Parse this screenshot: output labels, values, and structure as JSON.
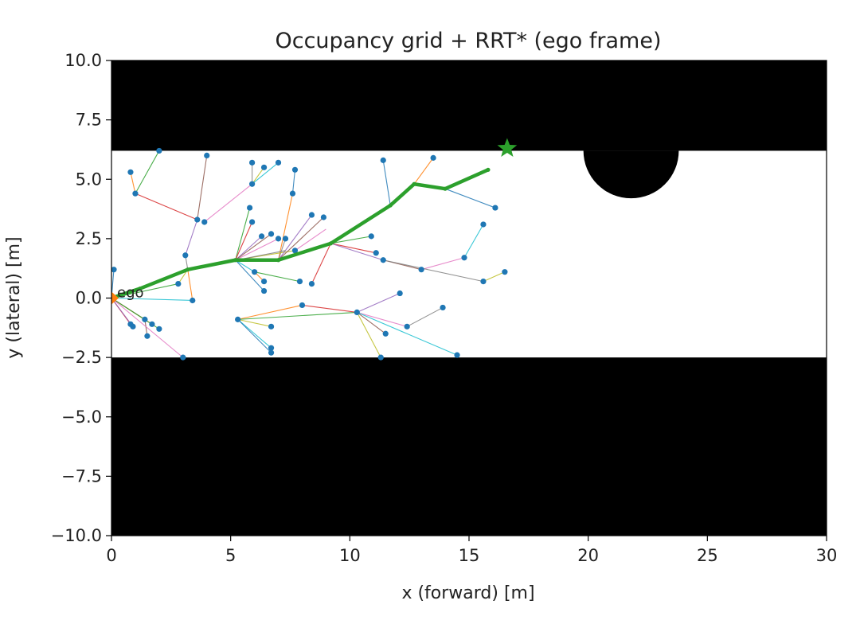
{
  "chart_data": {
    "type": "scatter",
    "title": "Occupancy grid + RRT* (ego frame)",
    "xlabel": "x (forward) [m]",
    "ylabel": "y (lateral) [m]",
    "xlim": [
      0,
      30
    ],
    "ylim": [
      -10,
      10
    ],
    "x_ticks": [
      "0",
      "5",
      "10",
      "15",
      "20",
      "25",
      "30"
    ],
    "y_ticks": [
      "10.0",
      "7.5",
      "5.0",
      "2.5",
      "0.0",
      "−2.5",
      "−5.0",
      "−7.5",
      "−10.0"
    ],
    "grid": false,
    "occupancy": {
      "free_corridor_y": [
        -2.5,
        6.2
      ],
      "obstacle_semicircle": {
        "center": [
          21.8,
          6.2
        ],
        "radius": 2.0
      },
      "occupied_color": "#000000",
      "free_color": "#ffffff"
    },
    "ego": {
      "label": "ego",
      "x": 0,
      "y": 0,
      "color": "#ff7f0e"
    },
    "goal": {
      "x": 16.6,
      "y": 6.3,
      "marker": "star",
      "color": "#2ca02c"
    },
    "node_color": "#1f77b4",
    "path_color": "#2ca02c",
    "edge_colors": [
      "#1f77b4",
      "#ff7f0e",
      "#2ca02c",
      "#d62728",
      "#9467bd",
      "#8c564b",
      "#e377c2",
      "#7f7f7f",
      "#bcbd22",
      "#17becf"
    ],
    "path": [
      [
        0,
        0
      ],
      [
        1.2,
        0.4
      ],
      [
        3.2,
        1.2
      ],
      [
        5.2,
        1.6
      ],
      [
        7.0,
        1.6
      ],
      [
        9.2,
        2.3
      ],
      [
        11.7,
        3.9
      ],
      [
        12.7,
        4.8
      ],
      [
        14.0,
        4.6
      ],
      [
        15.8,
        5.4
      ]
    ],
    "nodes": [
      [
        0.1,
        1.2
      ],
      [
        0.8,
        5.3
      ],
      [
        1.0,
        4.4
      ],
      [
        2.0,
        6.2
      ],
      [
        3.6,
        3.3
      ],
      [
        4.0,
        6.0
      ],
      [
        3.9,
        3.2
      ],
      [
        3.1,
        1.8
      ],
      [
        2.8,
        0.6
      ],
      [
        3.4,
        -0.1
      ],
      [
        1.4,
        -0.9
      ],
      [
        1.7,
        -1.1
      ],
      [
        2.0,
        -1.3
      ],
      [
        0.8,
        -1.1
      ],
      [
        0.9,
        -1.2
      ],
      [
        1.5,
        -1.6
      ],
      [
        3.0,
        -2.5
      ],
      [
        5.9,
        5.7
      ],
      [
        6.4,
        5.5
      ],
      [
        5.9,
        4.8
      ],
      [
        7.0,
        5.7
      ],
      [
        7.7,
        5.4
      ],
      [
        7.6,
        4.4
      ],
      [
        5.8,
        3.8
      ],
      [
        5.9,
        3.2
      ],
      [
        6.3,
        2.6
      ],
      [
        6.7,
        2.7
      ],
      [
        7.0,
        2.5
      ],
      [
        7.3,
        2.5
      ],
      [
        7.7,
        2.0
      ],
      [
        6.0,
        1.1
      ],
      [
        6.4,
        0.7
      ],
      [
        6.4,
        0.3
      ],
      [
        7.9,
        0.7
      ],
      [
        8.4,
        0.6
      ],
      [
        8.4,
        3.5
      ],
      [
        8.9,
        3.4
      ],
      [
        5.3,
        -0.9
      ],
      [
        6.7,
        -1.2
      ],
      [
        6.7,
        -2.1
      ],
      [
        6.7,
        -2.3
      ],
      [
        8.0,
        -0.3
      ],
      [
        10.3,
        -0.6
      ],
      [
        12.1,
        0.2
      ],
      [
        11.5,
        -1.5
      ],
      [
        12.4,
        -1.2
      ],
      [
        13.9,
        -0.4
      ],
      [
        11.3,
        -2.5
      ],
      [
        14.5,
        -2.4
      ],
      [
        11.4,
        5.8
      ],
      [
        13.5,
        5.9
      ],
      [
        10.9,
        2.6
      ],
      [
        11.1,
        1.9
      ],
      [
        11.4,
        1.6
      ],
      [
        13.0,
        1.2
      ],
      [
        14.8,
        1.7
      ],
      [
        15.6,
        0.7
      ],
      [
        16.5,
        1.1
      ],
      [
        15.6,
        3.1
      ],
      [
        16.1,
        3.8
      ]
    ],
    "edges": [
      [
        [
          0,
          0
        ],
        [
          0.1,
          1.2
        ]
      ],
      [
        [
          1.0,
          4.4
        ],
        [
          0.8,
          5.3
        ]
      ],
      [
        [
          1.0,
          4.4
        ],
        [
          2.0,
          6.2
        ]
      ],
      [
        [
          1.0,
          4.4
        ],
        [
          3.6,
          3.3
        ]
      ],
      [
        [
          3.1,
          1.8
        ],
        [
          3.6,
          3.3
        ]
      ],
      [
        [
          3.6,
          3.3
        ],
        [
          4.0,
          6.0
        ]
      ],
      [
        [
          3.9,
          3.2
        ],
        [
          5.9,
          4.8
        ]
      ],
      [
        [
          3.1,
          1.8
        ],
        [
          3.2,
          1.2
        ]
      ],
      [
        [
          2.8,
          0.6
        ],
        [
          3.2,
          1.2
        ]
      ],
      [
        [
          0,
          0
        ],
        [
          3.4,
          -0.1
        ]
      ],
      [
        [
          0,
          0
        ],
        [
          1.4,
          -0.9
        ]
      ],
      [
        [
          0,
          0
        ],
        [
          1.7,
          -1.1
        ]
      ],
      [
        [
          0,
          0
        ],
        [
          2.0,
          -1.3
        ]
      ],
      [
        [
          0,
          0
        ],
        [
          0.8,
          -1.1
        ]
      ],
      [
        [
          0,
          0
        ],
        [
          0.9,
          -1.2
        ]
      ],
      [
        [
          1.4,
          -0.9
        ],
        [
          1.5,
          -1.6
        ]
      ],
      [
        [
          0,
          0
        ],
        [
          3.0,
          -2.5
        ]
      ],
      [
        [
          5.9,
          4.8
        ],
        [
          5.9,
          5.7
        ]
      ],
      [
        [
          5.9,
          4.8
        ],
        [
          6.4,
          5.5
        ]
      ],
      [
        [
          5.9,
          4.8
        ],
        [
          7.0,
          5.7
        ]
      ],
      [
        [
          7.6,
          4.4
        ],
        [
          7.7,
          5.4
        ]
      ],
      [
        [
          7.0,
          1.6
        ],
        [
          7.6,
          4.4
        ]
      ],
      [
        [
          5.2,
          1.6
        ],
        [
          5.8,
          3.8
        ]
      ],
      [
        [
          5.2,
          1.6
        ],
        [
          5.9,
          3.2
        ]
      ],
      [
        [
          5.2,
          1.6
        ],
        [
          6.3,
          2.6
        ]
      ],
      [
        [
          5.2,
          1.6
        ],
        [
          6.7,
          2.7
        ]
      ],
      [
        [
          5.2,
          1.6
        ],
        [
          7.0,
          2.5
        ]
      ],
      [
        [
          7.0,
          1.6
        ],
        [
          7.3,
          2.5
        ]
      ],
      [
        [
          5.2,
          1.6
        ],
        [
          7.7,
          2.0
        ]
      ],
      [
        [
          5.2,
          1.6
        ],
        [
          6.0,
          1.1
        ]
      ],
      [
        [
          5.2,
          1.6
        ],
        [
          6.4,
          0.3
        ]
      ],
      [
        [
          6.0,
          1.1
        ],
        [
          6.4,
          0.7
        ]
      ],
      [
        [
          6.0,
          1.1
        ],
        [
          7.9,
          0.7
        ]
      ],
      [
        [
          9.2,
          2.3
        ],
        [
          8.4,
          0.6
        ]
      ],
      [
        [
          7.0,
          1.6
        ],
        [
          8.4,
          3.5
        ]
      ],
      [
        [
          7.0,
          1.6
        ],
        [
          8.9,
          3.4
        ]
      ],
      [
        [
          7.7,
          2.0
        ],
        [
          9.0,
          2.9
        ]
      ],
      [
        [
          3.2,
          1.2
        ],
        [
          7.3,
          2.0
        ]
      ],
      [
        [
          5.3,
          -0.9
        ],
        [
          6.7,
          -1.2
        ]
      ],
      [
        [
          5.3,
          -0.9
        ],
        [
          6.7,
          -2.1
        ]
      ],
      [
        [
          5.3,
          -0.9
        ],
        [
          6.7,
          -2.3
        ]
      ],
      [
        [
          5.3,
          -0.9
        ],
        [
          8.0,
          -0.3
        ]
      ],
      [
        [
          5.3,
          -0.9
        ],
        [
          10.3,
          -0.6
        ]
      ],
      [
        [
          8.0,
          -0.3
        ],
        [
          10.3,
          -0.6
        ]
      ],
      [
        [
          10.3,
          -0.6
        ],
        [
          12.1,
          0.2
        ]
      ],
      [
        [
          10.3,
          -0.6
        ],
        [
          11.5,
          -1.5
        ]
      ],
      [
        [
          10.3,
          -0.6
        ],
        [
          12.4,
          -1.2
        ]
      ],
      [
        [
          12.4,
          -1.2
        ],
        [
          13.9,
          -0.4
        ]
      ],
      [
        [
          10.3,
          -0.6
        ],
        [
          11.3,
          -2.5
        ]
      ],
      [
        [
          10.3,
          -0.6
        ],
        [
          14.5,
          -2.4
        ]
      ],
      [
        [
          11.7,
          3.9
        ],
        [
          11.4,
          5.8
        ]
      ],
      [
        [
          12.7,
          4.8
        ],
        [
          13.5,
          5.9
        ]
      ],
      [
        [
          9.2,
          2.3
        ],
        [
          10.9,
          2.6
        ]
      ],
      [
        [
          9.2,
          2.3
        ],
        [
          11.1,
          1.9
        ]
      ],
      [
        [
          9.2,
          2.3
        ],
        [
          11.4,
          1.6
        ]
      ],
      [
        [
          11.4,
          1.6
        ],
        [
          13.0,
          1.2
        ]
      ],
      [
        [
          13.0,
          1.2
        ],
        [
          14.8,
          1.7
        ]
      ],
      [
        [
          11.4,
          1.6
        ],
        [
          15.6,
          0.7
        ]
      ],
      [
        [
          15.6,
          0.7
        ],
        [
          16.5,
          1.1
        ]
      ],
      [
        [
          14.8,
          1.7
        ],
        [
          15.6,
          3.1
        ]
      ],
      [
        [
          14.0,
          4.6
        ],
        [
          16.1,
          3.8
        ]
      ],
      [
        [
          3.2,
          1.2
        ],
        [
          3.4,
          -0.1
        ]
      ],
      [
        [
          0,
          0
        ],
        [
          2.8,
          0.6
        ]
      ]
    ]
  }
}
